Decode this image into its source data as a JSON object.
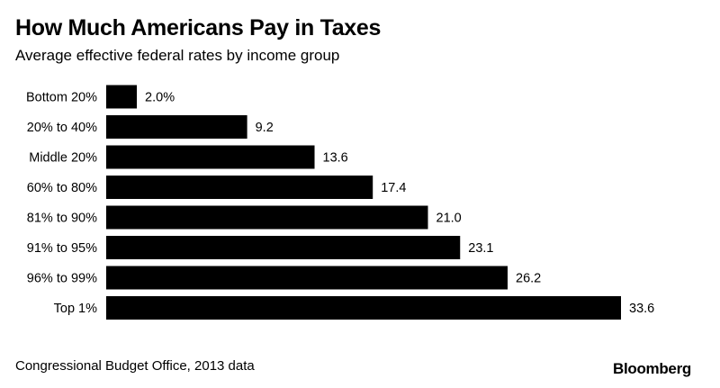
{
  "header": {
    "title": "How Much Americans Pay in Taxes",
    "subtitle": "Average effective federal rates by income group"
  },
  "footer": {
    "source": "Congressional Budget Office, 2013 data",
    "brand": "Bloomberg"
  },
  "chart_data": {
    "type": "bar",
    "orientation": "horizontal",
    "title": "How Much Americans Pay in Taxes",
    "subtitle": "Average effective federal rates by income group",
    "categories": [
      "Bottom 20%",
      "20% to 40%",
      "Middle 20%",
      "60% to 80%",
      "81% to 90%",
      "91% to 95%",
      "96% to 99%",
      "Top 1%"
    ],
    "values": [
      2.0,
      9.2,
      13.6,
      17.4,
      21.0,
      23.1,
      26.2,
      33.6
    ],
    "value_labels": [
      "2.0%",
      "9.2",
      "13.6",
      "17.4",
      "21.0",
      "23.1",
      "26.2",
      "33.6"
    ],
    "bar_color": "#000000",
    "grid": false,
    "legend": "none",
    "xlim": [
      0,
      33.6
    ]
  }
}
